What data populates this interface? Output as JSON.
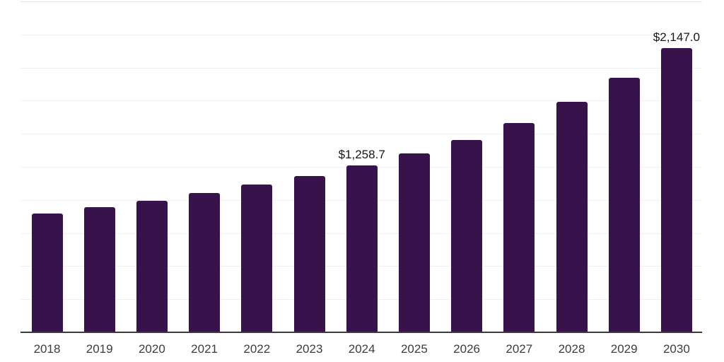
{
  "chart_data": {
    "type": "bar",
    "categories": [
      "2018",
      "2019",
      "2020",
      "2021",
      "2022",
      "2023",
      "2024",
      "2025",
      "2026",
      "2027",
      "2028",
      "2029",
      "2030"
    ],
    "values": [
      897,
      944,
      995,
      1051,
      1115,
      1178,
      1258.7,
      1349,
      1455,
      1583,
      1742,
      1923,
      2147
    ],
    "data_labels": {
      "2024": "$1,258.7",
      "2030": "$2,147.0"
    },
    "xlabel": "",
    "ylabel": "",
    "ylim": [
      0,
      2500
    ],
    "grid_step": 250,
    "grid": "horizontal-only",
    "legend_position": "none",
    "y_axis_labels_visible": false
  },
  "colors": {
    "bar": "#37124B",
    "gridline": "#F1F1F1",
    "top_gridline": "#E5E5E5",
    "axis_line": "#3B3B3B",
    "tick_label": "#3D3D3D",
    "data_label": "#161616",
    "background": "#FFFFFF"
  }
}
